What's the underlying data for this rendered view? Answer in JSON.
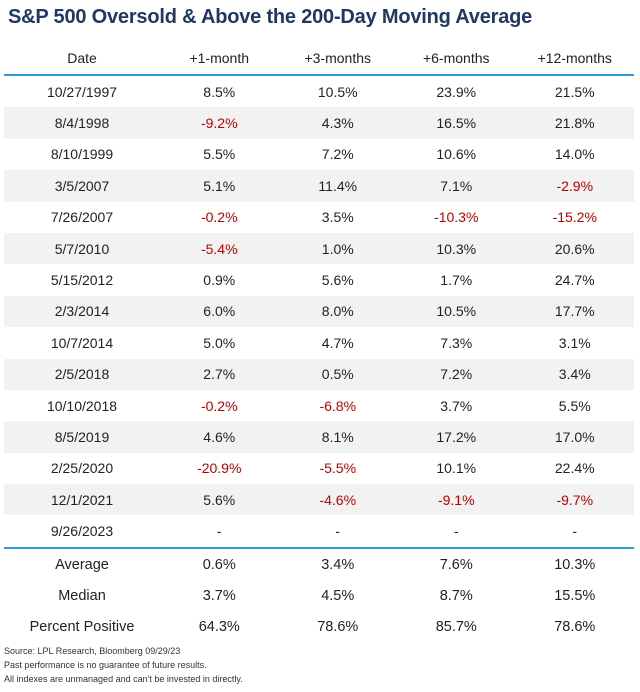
{
  "header": {
    "title": "S&P 500 Oversold & Above the 200-Day Moving Average"
  },
  "table": {
    "columns": [
      "Date",
      "+1-month",
      "+3-months",
      "+6-months",
      "+12-months"
    ],
    "rows": [
      [
        "10/27/1997",
        "8.5%",
        "10.5%",
        "23.9%",
        "21.5%"
      ],
      [
        "8/4/1998",
        "-9.2%",
        "4.3%",
        "16.5%",
        "21.8%"
      ],
      [
        "8/10/1999",
        "5.5%",
        "7.2%",
        "10.6%",
        "14.0%"
      ],
      [
        "3/5/2007",
        "5.1%",
        "11.4%",
        "7.1%",
        "-2.9%"
      ],
      [
        "7/26/2007",
        "-0.2%",
        "3.5%",
        "-10.3%",
        "-15.2%"
      ],
      [
        "5/7/2010",
        "-5.4%",
        "1.0%",
        "10.3%",
        "20.6%"
      ],
      [
        "5/15/2012",
        "0.9%",
        "5.6%",
        "1.7%",
        "24.7%"
      ],
      [
        "2/3/2014",
        "6.0%",
        "8.0%",
        "10.5%",
        "17.7%"
      ],
      [
        "10/7/2014",
        "5.0%",
        "4.7%",
        "7.3%",
        "3.1%"
      ],
      [
        "2/5/2018",
        "2.7%",
        "0.5%",
        "7.2%",
        "3.4%"
      ],
      [
        "10/10/2018",
        "-0.2%",
        "-6.8%",
        "3.7%",
        "5.5%"
      ],
      [
        "8/5/2019",
        "4.6%",
        "8.1%",
        "17.2%",
        "17.0%"
      ],
      [
        "2/25/2020",
        "-20.9%",
        "-5.5%",
        "10.1%",
        "22.4%"
      ],
      [
        "12/1/2021",
        "5.6%",
        "-4.6%",
        "-9.1%",
        "-9.7%"
      ],
      [
        "9/26/2023",
        "-",
        "-",
        "-",
        "-"
      ]
    ],
    "summary": [
      [
        "Average",
        "0.6%",
        "3.4%",
        "7.6%",
        "10.3%"
      ],
      [
        "Median",
        "3.7%",
        "4.5%",
        "8.7%",
        "15.5%"
      ],
      [
        "Percent Positive",
        "64.3%",
        "78.6%",
        "85.7%",
        "78.6%"
      ]
    ]
  },
  "notes": [
    "Source: LPL Research, Bloomberg 09/29/23",
    "Past performance is no guarantee of future results.",
    "All indexes are unmanaged and can't be invested in directly."
  ]
}
